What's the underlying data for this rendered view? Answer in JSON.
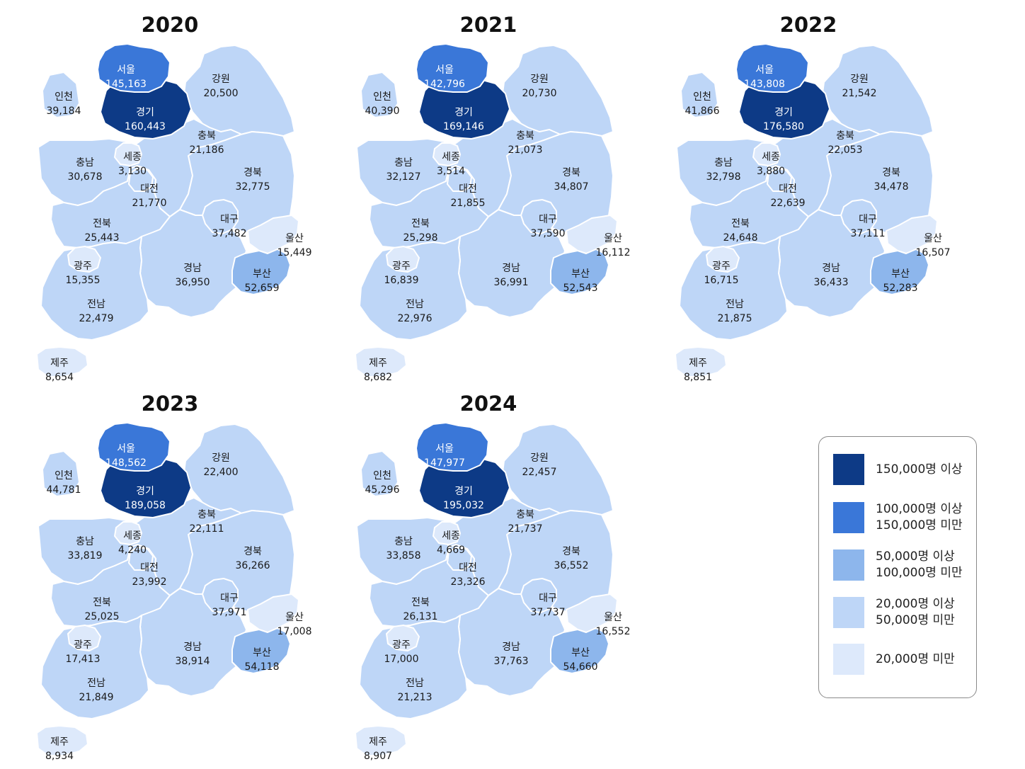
{
  "colors": {
    "c150k_plus": "#0d3a86",
    "c100k_150k": "#3a77d8",
    "c50k_100k": "#8db6ec",
    "c20k_50k": "#bed6f7",
    "c_under_20k": "#dde9fb",
    "border": "#ffffff",
    "label_dark": "#1a1a1a",
    "label_light": "#ffffff"
  },
  "regions": [
    "서울",
    "경기",
    "인천",
    "강원",
    "충북",
    "충남",
    "세종",
    "대전",
    "경북",
    "대구",
    "전북",
    "울산",
    "광주",
    "경남",
    "부산",
    "전남",
    "제주"
  ],
  "maps": [
    {
      "year": "2020",
      "values": {
        "서울": "145,163",
        "경기": "160,443",
        "인천": "39,184",
        "강원": "20,500",
        "충북": "21,186",
        "충남": "30,678",
        "세종": "3,130",
        "대전": "21,770",
        "경북": "32,775",
        "대구": "37,482",
        "전북": "25,443",
        "울산": "15,449",
        "광주": "15,355",
        "경남": "36,950",
        "부산": "52,659",
        "전남": "22,479",
        "제주": "8,654"
      }
    },
    {
      "year": "2021",
      "values": {
        "서울": "142,796",
        "경기": "169,146",
        "인천": "40,390",
        "강원": "20,730",
        "충북": "21,073",
        "충남": "32,127",
        "세종": "3,514",
        "대전": "21,855",
        "경북": "34,807",
        "대구": "37,590",
        "전북": "25,298",
        "울산": "16,112",
        "광주": "16,839",
        "경남": "36,991",
        "부산": "52,543",
        "전남": "22,976",
        "제주": "8,682"
      }
    },
    {
      "year": "2022",
      "values": {
        "서울": "143,808",
        "경기": "176,580",
        "인천": "41,866",
        "강원": "21,542",
        "충북": "22,053",
        "충남": "32,798",
        "세종": "3,880",
        "대전": "22,639",
        "경북": "34,478",
        "대구": "37,111",
        "전북": "24,648",
        "울산": "16,507",
        "광주": "16,715",
        "경남": "36,433",
        "부산": "52,283",
        "전남": "21,875",
        "제주": "8,851"
      }
    },
    {
      "year": "2023",
      "values": {
        "서울": "148,562",
        "경기": "189,058",
        "인천": "44,781",
        "강원": "22,400",
        "충북": "22,111",
        "충남": "33,819",
        "세종": "4,240",
        "대전": "23,992",
        "경북": "36,266",
        "대구": "37,971",
        "전북": "25,025",
        "울산": "17,008",
        "광주": "17,413",
        "경남": "38,914",
        "부산": "54,118",
        "전남": "21,849",
        "제주": "8,934"
      }
    },
    {
      "year": "2024",
      "values": {
        "서울": "147,977",
        "경기": "195,032",
        "인천": "45,296",
        "강원": "22,457",
        "충북": "21,737",
        "충남": "33,858",
        "세종": "4,669",
        "대전": "23,326",
        "경북": "36,552",
        "대구": "37,737",
        "전북": "26,131",
        "울산": "16,552",
        "광주": "17,000",
        "경남": "37,763",
        "부산": "54,660",
        "전남": "21,213",
        "제주": "8,907"
      }
    }
  ],
  "legend": [
    {
      "lines": [
        "150,000명 이상"
      ],
      "color": "#0d3a86"
    },
    {
      "lines": [
        "100,000명 이상",
        "150,000명 미만"
      ],
      "color": "#3a77d8"
    },
    {
      "lines": [
        "50,000명 이상",
        "100,000명 미만"
      ],
      "color": "#8db6ec"
    },
    {
      "lines": [
        "20,000명 이상",
        "50,000명 미만"
      ],
      "color": "#bed6f7"
    },
    {
      "lines": [
        "20,000명 미만"
      ],
      "color": "#dde9fb"
    }
  ]
}
